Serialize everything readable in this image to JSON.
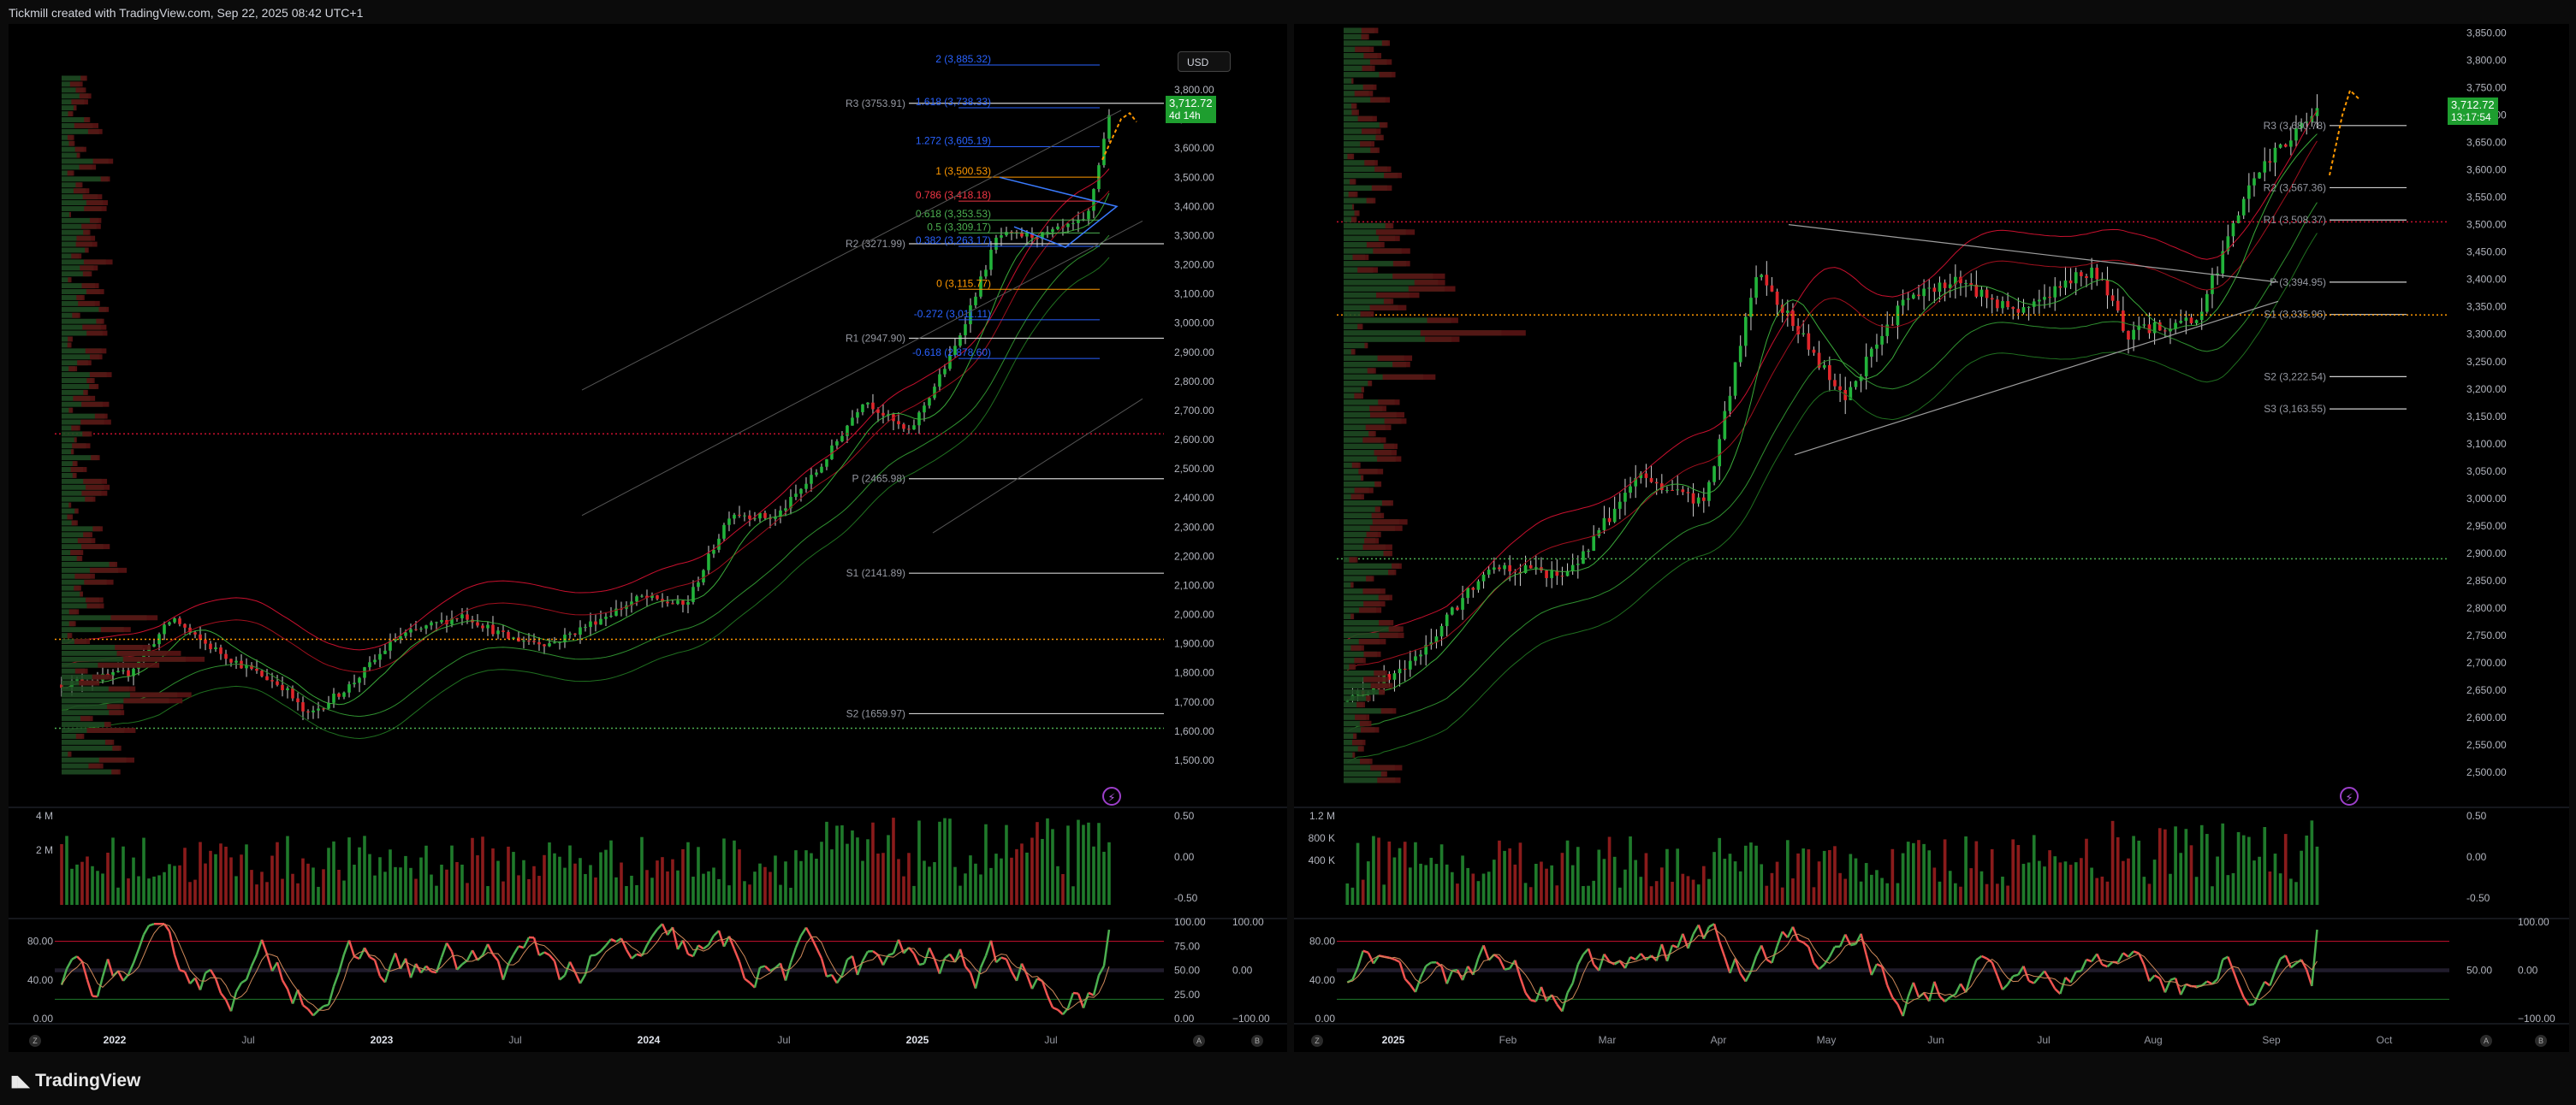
{
  "caption": "Tickmill created with TradingView.com, Sep 22, 2025 08:42 UTC+1",
  "brand": "TradingView",
  "colors": {
    "up": "#22b33a",
    "down": "#e0262b",
    "bg": "#000000",
    "accent_orange": "#ff9800",
    "fib_blue": "#2962ff"
  },
  "left": {
    "currency_button": "USD",
    "price_label": "3,712.72",
    "countdown": "4d 14h",
    "price_axis": [
      "3,800.00",
      "3,700.00",
      "3,600.00",
      "3,500.00",
      "3,400.00",
      "3,300.00",
      "3,200.00",
      "3,100.00",
      "3,000.00",
      "2,900.00",
      "2,800.00",
      "2,700.00",
      "2,600.00",
      "2,500.00",
      "2,400.00",
      "2,300.00",
      "2,200.00",
      "2,100.00",
      "2,000.00",
      "1,900.00",
      "1,800.00",
      "1,700.00",
      "1,600.00",
      "1,500.00"
    ],
    "time_axis": [
      "2022",
      "Jul",
      "2023",
      "Jul",
      "2024",
      "Jul",
      "2025",
      "Jul"
    ],
    "pivots": [
      {
        "label": "R3 (3753.91)",
        "value": 3753.91
      },
      {
        "label": "R2 (3271.99)",
        "value": 3271.99
      },
      {
        "label": "R1 (2947.90)",
        "value": 2947.9
      },
      {
        "label": "P (2465.98)",
        "value": 2465.98
      },
      {
        "label": "S1 (2141.89)",
        "value": 2141.89
      },
      {
        "label": "S2 (1659.97)",
        "value": 1659.97
      }
    ],
    "fibs": [
      {
        "label": "2 (3,885.32)",
        "value": 3885.32,
        "color": "#2962ff"
      },
      {
        "label": "1.618 (3,738.33)",
        "value": 3738.33,
        "color": "#2962ff"
      },
      {
        "label": "1.272 (3,605.19)",
        "value": 3605.19,
        "color": "#2962ff"
      },
      {
        "label": "1 (3,500.53)",
        "value": 3500.53,
        "color": "#ff9800"
      },
      {
        "label": "0.786 (3,418.18)",
        "value": 3418.18,
        "color": "#f23645"
      },
      {
        "label": "0.618 (3,353.53)",
        "value": 3353.53,
        "color": "#4caf50"
      },
      {
        "label": "0.5 (3,309.17)",
        "value": 3309.17,
        "color": "#4caf50"
      },
      {
        "label": "0.382 (3,263.17)",
        "value": 3263.17,
        "color": "#2962ff"
      },
      {
        "label": "0 (3,115.77)",
        "value": 3115.77,
        "color": "#ff9800"
      },
      {
        "label": "-0.272 (3,011.11)",
        "value": 3011.11,
        "color": "#2962ff"
      },
      {
        "label": "-0.618 (2,878.60)",
        "value": 2878.6,
        "color": "#2962ff"
      }
    ],
    "volume_axis": [
      "4 M",
      "2 M"
    ],
    "volume_right_axis": [
      "0.50",
      "0.00",
      "-0.50"
    ],
    "osc_left_axis": [
      "80.00",
      "40.00",
      "0.00"
    ],
    "osc_right_axis": [
      "100.00",
      "75.00",
      "50.00",
      "25.00",
      "0.00"
    ],
    "osc_far_right_axis": [
      "100.00",
      "0.00",
      "−100.00"
    ]
  },
  "right": {
    "price_label": "3,712.72",
    "countdown": "13:17:54",
    "price_axis": [
      "3,850.00",
      "3,800.00",
      "3,750.00",
      "3,700.00",
      "3,650.00",
      "3,600.00",
      "3,550.00",
      "3,500.00",
      "3,450.00",
      "3,400.00",
      "3,350.00",
      "3,300.00",
      "3,250.00",
      "3,200.00",
      "3,150.00",
      "3,100.00",
      "3,050.00",
      "3,000.00",
      "2,950.00",
      "2,900.00",
      "2,850.00",
      "2,800.00",
      "2,750.00",
      "2,700.00",
      "2,650.00",
      "2,600.00",
      "2,550.00",
      "2,500.00"
    ],
    "time_axis": [
      "2025",
      "Feb",
      "Mar",
      "Apr",
      "May",
      "Jun",
      "Jul",
      "Aug",
      "Sep",
      "Oct"
    ],
    "pivots": [
      {
        "label": "R3 (3,680.78)",
        "value": 3680.78
      },
      {
        "label": "R2 (3,567.36)",
        "value": 3567.36
      },
      {
        "label": "R1 (3,508.37)",
        "value": 3508.37
      },
      {
        "label": "P (3,394.95)",
        "value": 3394.95
      },
      {
        "label": "S1 (3,335.96)",
        "value": 3335.96
      },
      {
        "label": "S2 (3,222.54)",
        "value": 3222.54
      },
      {
        "label": "S3 (3,163.55)",
        "value": 3163.55
      }
    ],
    "volume_axis": [
      "1.2 M",
      "800 K",
      "400 K"
    ],
    "volume_right_axis": [
      "0.50",
      "0.00",
      "-0.50"
    ],
    "osc_left_axis": [
      "80.00",
      "40.00",
      "0.00"
    ],
    "osc_right_axis": [
      "50.00"
    ],
    "osc_far_right_axis": [
      "100.00",
      "0.00",
      "−100.00"
    ]
  },
  "chart_data": [
    {
      "type": "candlestick",
      "title": "",
      "timeframe": "weekly",
      "ylim": [
        1450,
        3850
      ],
      "x_range": [
        "2021-10",
        "2025-10"
      ],
      "last_price": 3712.72,
      "approx_closes": [
        {
          "x": "2021-10",
          "y": 1760
        },
        {
          "x": "2022-01",
          "y": 1800
        },
        {
          "x": "2022-03",
          "y": 1990
        },
        {
          "x": "2022-04",
          "y": 1920
        },
        {
          "x": "2022-06",
          "y": 1830
        },
        {
          "x": "2022-08",
          "y": 1750
        },
        {
          "x": "2022-09",
          "y": 1650
        },
        {
          "x": "2022-11",
          "y": 1760
        },
        {
          "x": "2023-01",
          "y": 1920
        },
        {
          "x": "2023-04",
          "y": 2000
        },
        {
          "x": "2023-06",
          "y": 1920
        },
        {
          "x": "2023-08",
          "y": 1900
        },
        {
          "x": "2023-10",
          "y": 1980
        },
        {
          "x": "2023-12",
          "y": 2060
        },
        {
          "x": "2024-02",
          "y": 2030
        },
        {
          "x": "2024-04",
          "y": 2350
        },
        {
          "x": "2024-06",
          "y": 2330
        },
        {
          "x": "2024-08",
          "y": 2500
        },
        {
          "x": "2024-10",
          "y": 2740
        },
        {
          "x": "2024-12",
          "y": 2620
        },
        {
          "x": "2025-02",
          "y": 2900
        },
        {
          "x": "2025-04",
          "y": 3300
        },
        {
          "x": "2025-06",
          "y": 3300
        },
        {
          "x": "2025-08",
          "y": 3350
        },
        {
          "x": "2025-09",
          "y": 3712.72
        }
      ]
    },
    {
      "type": "candlestick",
      "title": "",
      "timeframe": "daily",
      "ylim": [
        2480,
        3860
      ],
      "x_range": [
        "2025-01",
        "2025-10"
      ],
      "last_price": 3712.72,
      "approx_closes": [
        {
          "x": "2025-01-02",
          "y": 2630
        },
        {
          "x": "2025-01-20",
          "y": 2700
        },
        {
          "x": "2025-02-10",
          "y": 2880
        },
        {
          "x": "2025-03-01",
          "y": 2860
        },
        {
          "x": "2025-03-20",
          "y": 3040
        },
        {
          "x": "2025-04-08",
          "y": 2990
        },
        {
          "x": "2025-04-22",
          "y": 3420
        },
        {
          "x": "2025-05-15",
          "y": 3180
        },
        {
          "x": "2025-06-01",
          "y": 3360
        },
        {
          "x": "2025-06-15",
          "y": 3400
        },
        {
          "x": "2025-07-01",
          "y": 3340
        },
        {
          "x": "2025-07-22",
          "y": 3420
        },
        {
          "x": "2025-08-01",
          "y": 3300
        },
        {
          "x": "2025-08-20",
          "y": 3330
        },
        {
          "x": "2025-09-05",
          "y": 3590
        },
        {
          "x": "2025-09-22",
          "y": 3712.72
        }
      ]
    }
  ]
}
